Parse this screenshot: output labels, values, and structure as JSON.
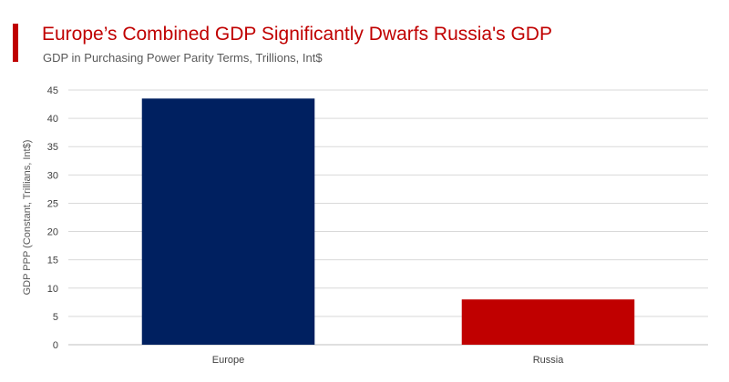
{
  "header": {
    "title": "Europe’s Combined GDP Significantly Dwarfs Russia's GDP",
    "subtitle": "GDP in Purchasing Power Parity Terms, Trillions, Int$",
    "accent_color": "#c00000"
  },
  "chart_data": {
    "type": "bar",
    "title": "Europe’s Combined GDP Significantly Dwarfs Russia's GDP",
    "subtitle": "GDP in Purchasing Power Parity Terms, Trillions, Int$",
    "categories": [
      "Europe",
      "Russia"
    ],
    "values": [
      43.5,
      8
    ],
    "colors": [
      "#002060",
      "#c00000"
    ],
    "xlabel": "",
    "ylabel": "GDP PPP (Constant, Trillians, Int$)",
    "ylim": [
      0,
      45
    ],
    "yticks": [
      0,
      5,
      10,
      15,
      20,
      25,
      30,
      35,
      40,
      45
    ],
    "grid": true,
    "legend": "none"
  }
}
